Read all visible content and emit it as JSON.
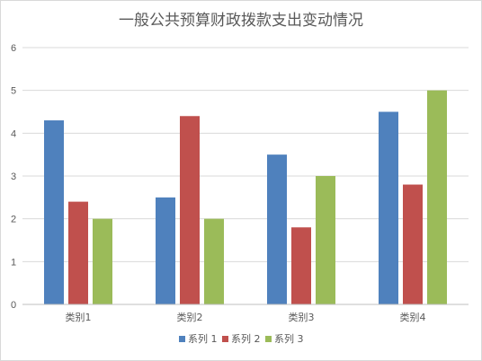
{
  "chart_data": {
    "type": "bar",
    "title": "一般公共预算财政拨款支出变动情况",
    "categories": [
      "类别1",
      "类别2",
      "类别3",
      "类别4"
    ],
    "series": [
      {
        "name": "系列 1",
        "color": "#4f81bd",
        "values": [
          4.3,
          2.5,
          3.5,
          4.5
        ]
      },
      {
        "name": "系列 2",
        "color": "#c0504d",
        "values": [
          2.4,
          4.4,
          1.8,
          2.8
        ]
      },
      {
        "name": "系列 3",
        "color": "#9bbb59",
        "values": [
          2.0,
          2.0,
          3.0,
          5.0
        ]
      }
    ],
    "ylim": [
      0,
      6
    ],
    "yticks": [
      "0",
      "1",
      "2",
      "3",
      "4",
      "5",
      "6"
    ],
    "xlabel": "",
    "ylabel": "",
    "grid": true,
    "legend_position": "bottom"
  }
}
